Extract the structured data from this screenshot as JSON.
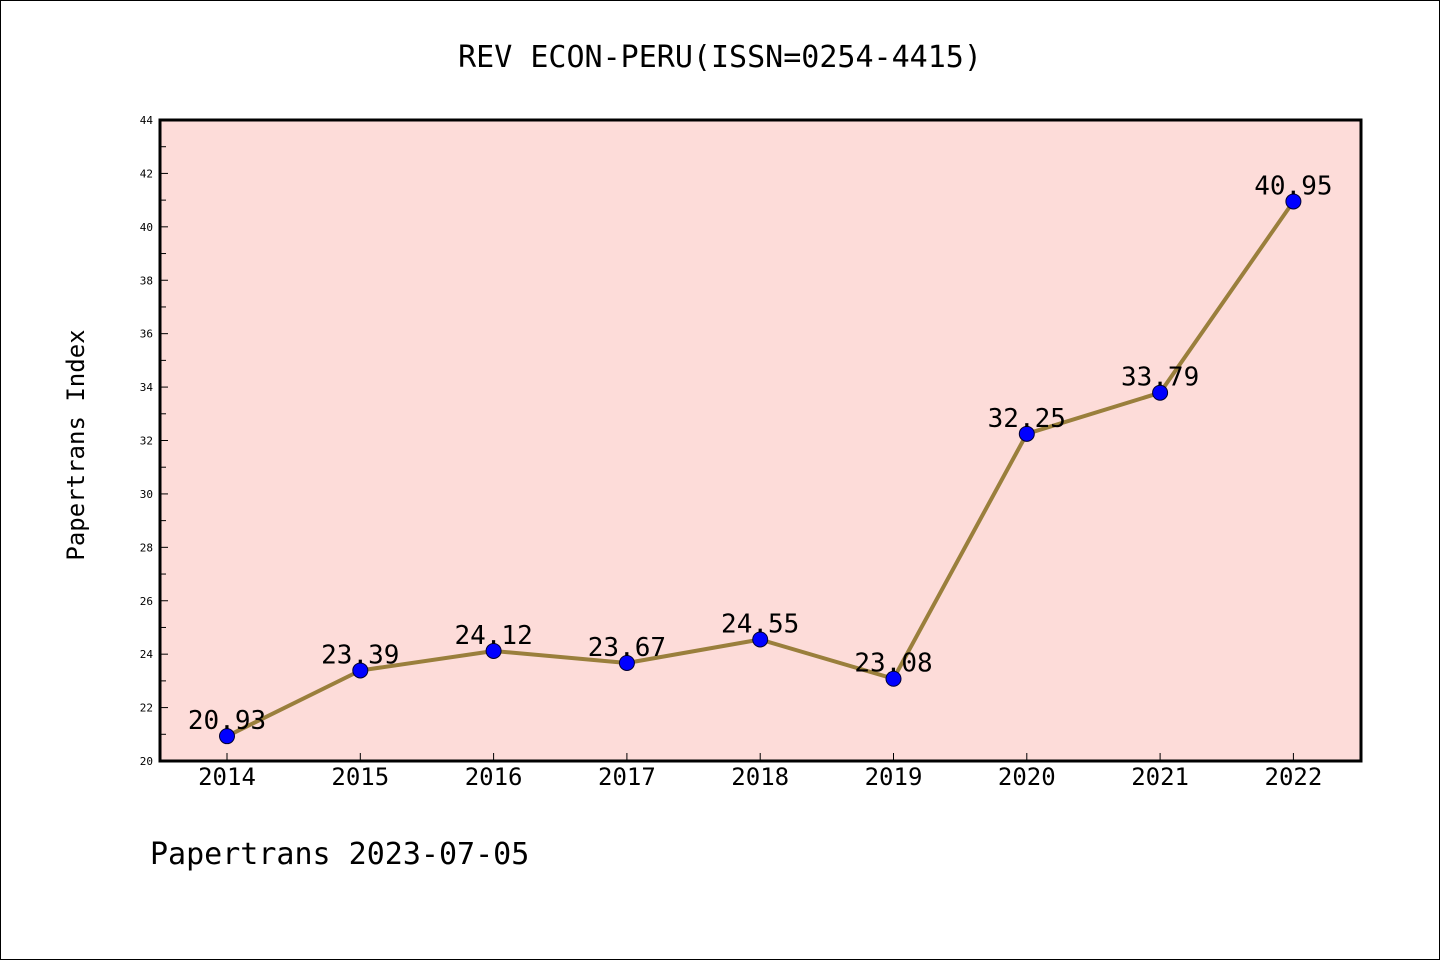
{
  "chart_data": {
    "type": "line",
    "title": "REV ECON-PERU(ISSN=0254-4415)",
    "xlabel": "",
    "ylabel": "Papertrans Index",
    "categories": [
      "2014",
      "2015",
      "2016",
      "2017",
      "2018",
      "2019",
      "2020",
      "2021",
      "2022"
    ],
    "values": [
      20.93,
      23.39,
      24.12,
      23.67,
      24.55,
      23.08,
      32.25,
      33.79,
      40.95
    ],
    "value_labels": [
      "20.93",
      "23.39",
      "24.12",
      "23.67",
      "24.55",
      "23.08",
      "32.25",
      "33.79",
      "40.95"
    ],
    "ylim": [
      20,
      44
    ],
    "yticks": [
      "20",
      "22",
      "24",
      "26",
      "28",
      "30",
      "32",
      "34",
      "36",
      "38",
      "40",
      "42",
      "44"
    ],
    "grid": false,
    "colors": {
      "plot_background": "#fddcd9",
      "line": "#9a7f3c",
      "marker": "#0000ff"
    }
  },
  "footer": {
    "text": "Papertrans 2023-07-05"
  }
}
